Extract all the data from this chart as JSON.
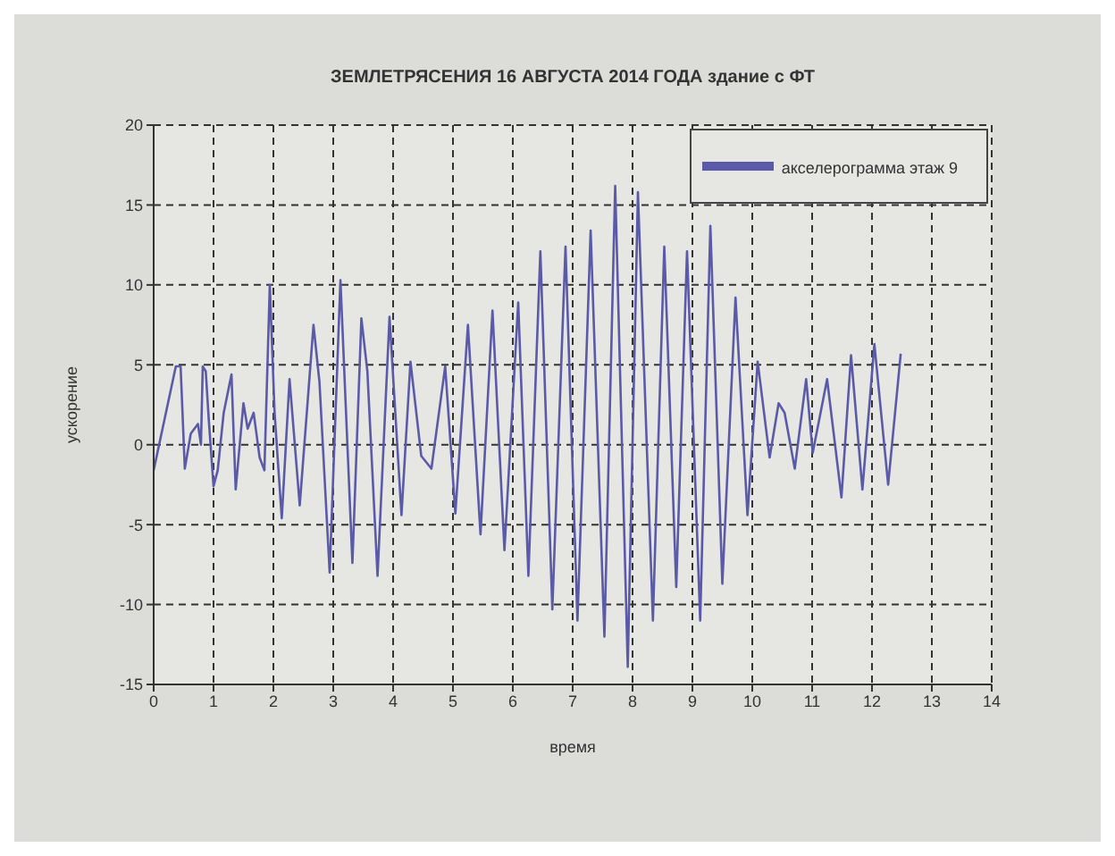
{
  "chart_data": {
    "type": "line",
    "title": "ЗЕМЛЕТРЯСЕНИЯ  16 АВГУСТА 2014 ГОДА здание с ФТ",
    "xlabel": "время",
    "ylabel": "ускорение",
    "xlim": [
      0,
      14
    ],
    "xticks": [
      0,
      1,
      2,
      3,
      4,
      5,
      6,
      7,
      8,
      9,
      10,
      11,
      12,
      13,
      14
    ],
    "ylim": [
      -15,
      20
    ],
    "yticks": [
      -15,
      -10,
      -5,
      0,
      5,
      10,
      15,
      20
    ],
    "grid": true,
    "legend": "top right",
    "line_style": "solid",
    "marker": "none",
    "series": [
      {
        "name": "акселерограмма этаж 9",
        "color": "#5a5aa8",
        "x": [
          0,
          0.37,
          0.45,
          0.52,
          0.62,
          0.74,
          0.79,
          0.82,
          0.87,
          0.92,
          1.0,
          1.07,
          1.17,
          1.3,
          1.37,
          1.5,
          1.57,
          1.67,
          1.77,
          1.85,
          1.94,
          2.02,
          2.14,
          2.27,
          2.44,
          2.67,
          2.77,
          2.94,
          3.12,
          3.32,
          3.47,
          3.57,
          3.74,
          3.94,
          4.14,
          4.29,
          4.47,
          4.64,
          4.87,
          5.04,
          5.25,
          5.46,
          5.66,
          5.86,
          6.09,
          6.26,
          6.46,
          6.66,
          6.88,
          7.08,
          7.3,
          7.53,
          7.71,
          7.92,
          8.09,
          8.34,
          8.53,
          8.73,
          8.91,
          9.13,
          9.3,
          9.5,
          9.72,
          9.92,
          10.09,
          10.29,
          10.44,
          10.54,
          10.71,
          10.9,
          11.01,
          11.25,
          11.49,
          11.65,
          11.84,
          12.04,
          12.27,
          12.48
        ],
        "values": [
          -1.6,
          4.9,
          4.9,
          -1.5,
          0.7,
          1.3,
          0,
          4.9,
          4.6,
          1.6,
          -2.6,
          -1.6,
          2,
          4.4,
          -2.8,
          2.6,
          1,
          2,
          -0.8,
          -1.6,
          10,
          2,
          -4.6,
          4.1,
          -3.8,
          7.5,
          3.9,
          -8,
          10.3,
          -7.4,
          7.9,
          4.6,
          -8.2,
          8,
          -4.4,
          5.2,
          -0.7,
          -1.5,
          4.9,
          -4.3,
          7.5,
          -5.6,
          8.4,
          -6.6,
          8.9,
          -8.2,
          12.1,
          -10.3,
          12.4,
          -11,
          13.4,
          -12,
          16.2,
          -13.9,
          15.8,
          -11,
          12.4,
          -8.9,
          12.1,
          -11,
          13.7,
          -8.7,
          9.2,
          -4.4,
          5.2,
          -0.8,
          2.6,
          2,
          -1.5,
          4.1,
          -0.5,
          4.1,
          -3.3,
          5.6,
          -2.8,
          6.3,
          -2.5,
          5.7
        ]
      }
    ]
  }
}
